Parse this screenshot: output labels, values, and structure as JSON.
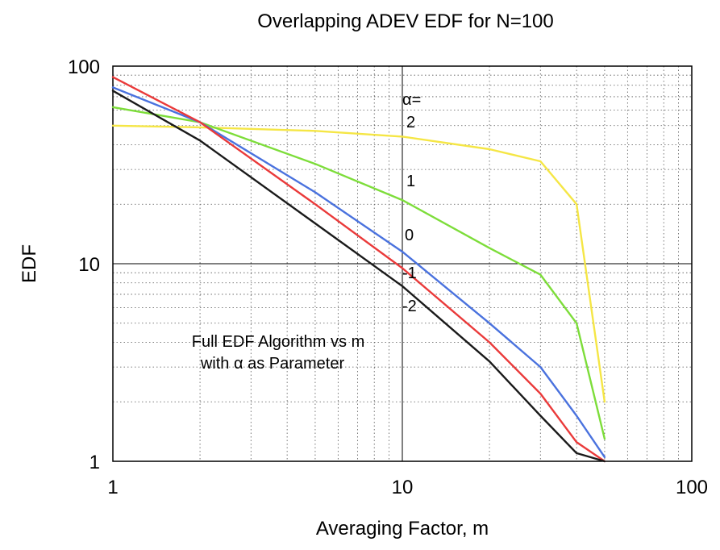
{
  "chart_data": {
    "type": "line",
    "title": "Overlapping ADEV EDF for N=100",
    "xlabel": "Averaging Factor, m",
    "ylabel": "EDF",
    "x_scale": "log",
    "y_scale": "log",
    "xlim": [
      1,
      100
    ],
    "ylim": [
      1,
      100
    ],
    "x_ticks": [
      "1",
      "10",
      "100"
    ],
    "y_ticks": [
      "1",
      "10",
      "100"
    ],
    "grid": true,
    "annotation_lines": [
      "Full EDF Algorithm vs m",
      "with α as Parameter"
    ],
    "alpha_header": "α=",
    "series": [
      {
        "name": "2",
        "color": "#f5e645",
        "x": [
          1,
          2,
          5,
          10,
          20,
          30,
          40,
          50
        ],
        "y": [
          50,
          49,
          47,
          44,
          38,
          33,
          20,
          2
        ]
      },
      {
        "name": "1",
        "color": "#7ddd3a",
        "x": [
          1,
          2,
          5,
          10,
          20,
          30,
          40,
          50
        ],
        "y": [
          62,
          52,
          32,
          21,
          12,
          8.8,
          5,
          1.3
        ]
      },
      {
        "name": "0",
        "color": "#4a72de",
        "x": [
          1,
          2,
          5,
          10,
          20,
          30,
          40,
          50
        ],
        "y": [
          78,
          52,
          23,
          11.5,
          5,
          3,
          1.7,
          1.05
        ]
      },
      {
        "name": "-1",
        "color": "#ea3a3a",
        "x": [
          1,
          2,
          5,
          10,
          20,
          30,
          40,
          50
        ],
        "y": [
          88,
          52,
          20,
          9.5,
          4,
          2.2,
          1.25,
          1.0
        ]
      },
      {
        "name": "-2",
        "color": "#1a1a1a",
        "x": [
          1,
          2,
          5,
          10,
          20,
          30,
          40,
          50
        ],
        "y": [
          75,
          42,
          16,
          7.7,
          3.2,
          1.7,
          1.1,
          1.0
        ]
      }
    ]
  }
}
